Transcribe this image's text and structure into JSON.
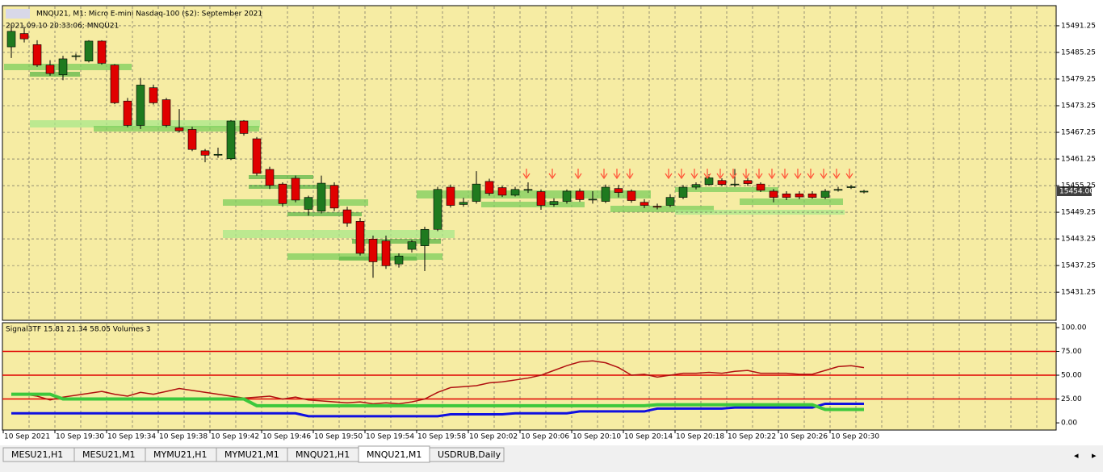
{
  "window": {
    "title": "MNQU21, M1:  Micro E-mini Nasdaq-100 ($2): September 2021",
    "timestamp": "2021.09.10 20:33:06; MNQU21",
    "price_label": "15454.00"
  },
  "chart_data": [
    {
      "type": "candlestick",
      "up_color": "#1f7a1f",
      "down_color": "#e00000",
      "ylim": [
        15425.1,
        15495.6
      ],
      "yticks": [
        15491.25,
        15485.25,
        15479.25,
        15473.25,
        15467.25,
        15461.25,
        15455.25,
        15449.25,
        15443.25,
        15437.25,
        15431.25
      ],
      "x_labels": [
        "10 Sep 2021",
        "10 Sep 19:30",
        "10 Sep 19:34",
        "10 Sep 19:38",
        "10 Sep 19:42",
        "10 Sep 19:46",
        "10 Sep 19:50",
        "10 Sep 19:54",
        "10 Sep 19:58",
        "10 Sep 20:02",
        "10 Sep 20:06",
        "10 Sep 20:10",
        "10 Sep 20:14",
        "10 Sep 20:18",
        "10 Sep 20:22",
        "10 Sep 20:26",
        "10 Sep 20:30"
      ],
      "candles": [
        [
          15486.5,
          15491.5,
          15484,
          15490
        ],
        [
          15489.5,
          15491,
          15487.5,
          15488.3
        ],
        [
          15487,
          15488,
          15482,
          15482.4
        ],
        [
          15482.4,
          15483.5,
          15480,
          15480.5
        ],
        [
          15480.2,
          15484.5,
          15479,
          15483.8
        ],
        [
          15484.3,
          15485,
          15483.5,
          15484.5
        ],
        [
          15483.3,
          15488,
          15483,
          15487.8
        ],
        [
          15487.8,
          15488,
          15482.5,
          15482.8
        ],
        [
          15482.4,
          15482.6,
          15473.6,
          15473.9
        ],
        [
          15474.3,
          15475,
          15468.4,
          15468.8
        ],
        [
          15468.8,
          15479.5,
          15468,
          15477.9
        ],
        [
          15477.3,
          15478,
          15473.5,
          15473.9
        ],
        [
          15474.6,
          15475,
          15468.4,
          15468.8
        ],
        [
          15468.3,
          15472.5,
          15467.2,
          15467.6
        ],
        [
          15467.9,
          15468.5,
          15463,
          15463.4
        ],
        [
          15463.1,
          15463.5,
          15460.5,
          15462.1
        ],
        [
          15462.1,
          15463.8,
          15461.5,
          15462.3
        ],
        [
          15461.3,
          15470,
          15461,
          15469.8
        ],
        [
          15469.8,
          15470,
          15466.5,
          15467
        ],
        [
          15465.8,
          15466.2,
          15457.5,
          15458
        ],
        [
          15458.9,
          15459.5,
          15454.5,
          15455.3
        ],
        [
          15455.6,
          15456,
          15450.5,
          15451.2
        ],
        [
          15456.9,
          15457.5,
          15451.5,
          15452
        ],
        [
          15449.9,
          15453,
          15448.5,
          15452.6
        ],
        [
          15449.5,
          15457.5,
          15449,
          15455.8
        ],
        [
          15455.3,
          15456,
          15449.5,
          15450.2
        ],
        [
          15449.8,
          15450.5,
          15446,
          15446.8
        ],
        [
          15447.2,
          15448,
          15439.5,
          15440
        ],
        [
          15443.2,
          15444,
          15434.5,
          15438.1
        ],
        [
          15442.8,
          15444,
          15436.5,
          15437.2
        ],
        [
          15437.6,
          15440,
          15436.8,
          15439.4
        ],
        [
          15440.9,
          15443,
          15440.2,
          15442.6
        ],
        [
          15441.7,
          15446,
          15436,
          15445.4
        ],
        [
          15445.4,
          15455,
          15445,
          15454.4
        ],
        [
          15454.9,
          15455.5,
          15450.3,
          15450.8
        ],
        [
          15451,
          15452.5,
          15450.5,
          15451.5
        ],
        [
          15451.7,
          15458.5,
          15451.2,
          15455.6
        ],
        [
          15456.2,
          15456.8,
          15453,
          15453.5
        ],
        [
          15454.8,
          15455.2,
          15452.7,
          15453.1
        ],
        [
          15453.1,
          15455,
          15452.8,
          15454.4
        ],
        [
          15454.2,
          15456,
          15453.6,
          15454.4
        ],
        [
          15453.9,
          15454.4,
          15449.8,
          15450.8
        ],
        [
          15451,
          15452.4,
          15450.5,
          15451.7
        ],
        [
          15451.7,
          15454.4,
          15451.2,
          15454
        ],
        [
          15454,
          15454.6,
          15451.6,
          15452.1
        ],
        [
          15452,
          15454,
          15451.2,
          15452.2
        ],
        [
          15451.7,
          15455.5,
          15451.3,
          15454.9
        ],
        [
          15454.6,
          15455.4,
          15452.6,
          15453.7
        ],
        [
          15454,
          15454.4,
          15451.4,
          15451.9
        ],
        [
          15451.5,
          15452.2,
          15450.2,
          15450.8
        ],
        [
          15450.6,
          15451.2,
          15449.9,
          15450.4
        ],
        [
          15450.8,
          15453.3,
          15450.4,
          15452.6
        ],
        [
          15452.6,
          15455.4,
          15452.2,
          15454.9
        ],
        [
          15454.9,
          15456,
          15454.4,
          15455.5
        ],
        [
          15455.5,
          15457.8,
          15455.2,
          15457
        ],
        [
          15456.4,
          15456.9,
          15455.1,
          15455.5
        ],
        [
          15455.5,
          15459,
          15455,
          15455.6
        ],
        [
          15456.4,
          15457,
          15455.2,
          15455.7
        ],
        [
          15455.6,
          15456,
          15453.8,
          15454.2
        ],
        [
          15454,
          15454.5,
          15451.5,
          15452.6
        ],
        [
          15453.4,
          15454,
          15452,
          15452.6
        ],
        [
          15453.4,
          15454,
          15452.2,
          15452.7
        ],
        [
          15453.4,
          15454,
          15452.3,
          15452.6
        ],
        [
          15452.6,
          15454.5,
          15452.2,
          15454
        ],
        [
          15454.2,
          15455,
          15453.9,
          15454.4
        ],
        [
          15454.8,
          15455.4,
          15454.5,
          15455
        ],
        [
          15453.8,
          15454.3,
          15453.5,
          15454
        ]
      ]
    },
    {
      "type": "line",
      "title": "Signal3TF 15.81 21.34 58.05 Volumes 3",
      "ylim": [
        -6.7,
        104.2
      ],
      "yticks": [
        {
          "value": 100,
          "label": "100.00"
        },
        {
          "value": 75,
          "label": "75.00"
        },
        {
          "value": 50,
          "label": "50.00"
        },
        {
          "value": 25,
          "label": "25.00"
        },
        {
          "value": 0,
          "label": "0.00"
        }
      ],
      "levels": [
        75,
        50,
        25
      ],
      "level_color": "#e00000",
      "series": [
        {
          "color": "#b01010",
          "values": [
            29,
            30,
            28,
            24,
            27,
            29,
            31,
            33,
            30,
            28,
            32,
            30,
            33,
            36,
            34,
            32,
            30,
            28,
            26,
            27,
            28,
            25,
            27,
            24,
            23,
            22,
            21,
            22,
            20,
            21,
            20,
            22,
            25,
            32,
            37,
            38,
            39,
            42,
            43,
            45,
            47,
            50,
            55,
            60,
            64,
            65,
            63,
            58,
            50,
            51,
            48,
            50,
            52,
            52,
            53,
            52,
            54,
            55,
            52,
            52,
            52,
            51,
            51,
            55,
            59,
            60,
            58
          ]
        },
        {
          "color": "#1010e0",
          "values": [
            10,
            10,
            10,
            10,
            10,
            10,
            10,
            10,
            10,
            10,
            10,
            10,
            10,
            10,
            10,
            10,
            10,
            10,
            10,
            10,
            10,
            10,
            10,
            7,
            7,
            7,
            7,
            7,
            7,
            7,
            7,
            7,
            7,
            7,
            9,
            9,
            9,
            9,
            9,
            10,
            10,
            10,
            10,
            10,
            12,
            12,
            12,
            12,
            12,
            12,
            15,
            15,
            15,
            15,
            15,
            15,
            16,
            16,
            16,
            16,
            16,
            16,
            16,
            20,
            20,
            20,
            20
          ]
        },
        {
          "color": "#3cc83c",
          "values": [
            30,
            30,
            30,
            30,
            25,
            25,
            25,
            25,
            25,
            25,
            25,
            25,
            25,
            25,
            25,
            25,
            25,
            25,
            25,
            18,
            18,
            18,
            18,
            18,
            18,
            18,
            18,
            18,
            18,
            18,
            18,
            18,
            18,
            18,
            18,
            18,
            18,
            18,
            18,
            18,
            18,
            18,
            18,
            18,
            18,
            18,
            18,
            18,
            18,
            18,
            19,
            19,
            19,
            19,
            19,
            19,
            19,
            19,
            19,
            19,
            19,
            19,
            19,
            14,
            14,
            14,
            14
          ]
        }
      ]
    }
  ],
  "tabs": [
    "MESU21,H1",
    "MESU21,M1",
    "MYMU21,H1",
    "MYMU21,M1",
    "MNQU21,H1",
    "MNQU21,M1",
    "USDRUB,Daily"
  ]
}
